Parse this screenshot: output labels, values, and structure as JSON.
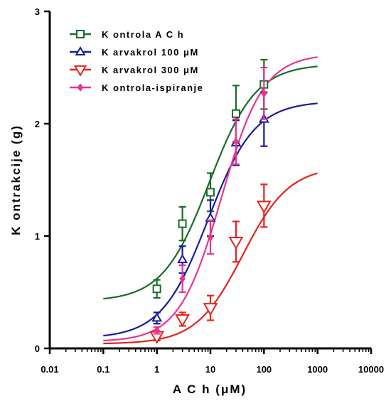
{
  "chart_data": {
    "type": "scatter",
    "xlabel": "A C h  (μM)",
    "ylabel": "K ontrakcije  (g)",
    "xscale": "log",
    "xlim": [
      0.01,
      10000
    ],
    "ylim": [
      0,
      3
    ],
    "x_tick_labels": [
      "0.01",
      "0.1",
      "1",
      "10",
      "100",
      "1000",
      "10000"
    ],
    "x_tick_values": [
      0.01,
      0.1,
      1,
      10,
      100,
      1000,
      10000
    ],
    "y_tick_labels": [
      "0",
      "1",
      "2",
      "3"
    ],
    "y_tick_values": [
      0,
      1,
      2,
      3
    ],
    "legend_position": "top-left",
    "series": [
      {
        "name": "K ontrola A C h",
        "color": "#1a6b2a",
        "marker": "square",
        "x": [
          1,
          3,
          10,
          30,
          100
        ],
        "y": [
          0.53,
          1.11,
          1.39,
          2.09,
          2.35
        ],
        "err": [
          0.08,
          0.15,
          0.17,
          0.25,
          0.22
        ],
        "fit": {
          "bottom": 0.42,
          "top": 2.53,
          "ec50": 9.5,
          "hill": 1.0
        }
      },
      {
        "name": "K arvakrol 100 μM",
        "color": "#1a1a9e",
        "marker": "triangle-up",
        "x": [
          1,
          3,
          10,
          30,
          100
        ],
        "y": [
          0.27,
          0.79,
          1.16,
          1.83,
          2.04
        ],
        "err": [
          0.05,
          0.12,
          0.16,
          0.2,
          0.24
        ],
        "fit": {
          "bottom": 0.09,
          "top": 2.2,
          "ec50": 9.0,
          "hill": 1.0
        }
      },
      {
        "name": "K arvakrol 300 μM",
        "color": "#e8231c",
        "marker": "triangle-down",
        "x": [
          1,
          3,
          10,
          30,
          100
        ],
        "y": [
          0.11,
          0.26,
          0.36,
          0.95,
          1.27
        ],
        "err": [
          0.04,
          0.06,
          0.11,
          0.18,
          0.19
        ],
        "fit": {
          "bottom": 0.04,
          "top": 1.62,
          "ec50": 40,
          "hill": 1.0
        }
      },
      {
        "name": "K ontrola-ispiranje",
        "color": "#e8358f",
        "marker": "diamond",
        "x": [
          1,
          3,
          10,
          30,
          100
        ],
        "y": [
          0.16,
          0.62,
          0.99,
          1.84,
          2.27
        ],
        "err": [
          0.03,
          0.12,
          0.15,
          0.2,
          0.23
        ],
        "fit": {
          "bottom": 0.06,
          "top": 2.62,
          "ec50": 16,
          "hill": 1.1
        }
      }
    ]
  }
}
